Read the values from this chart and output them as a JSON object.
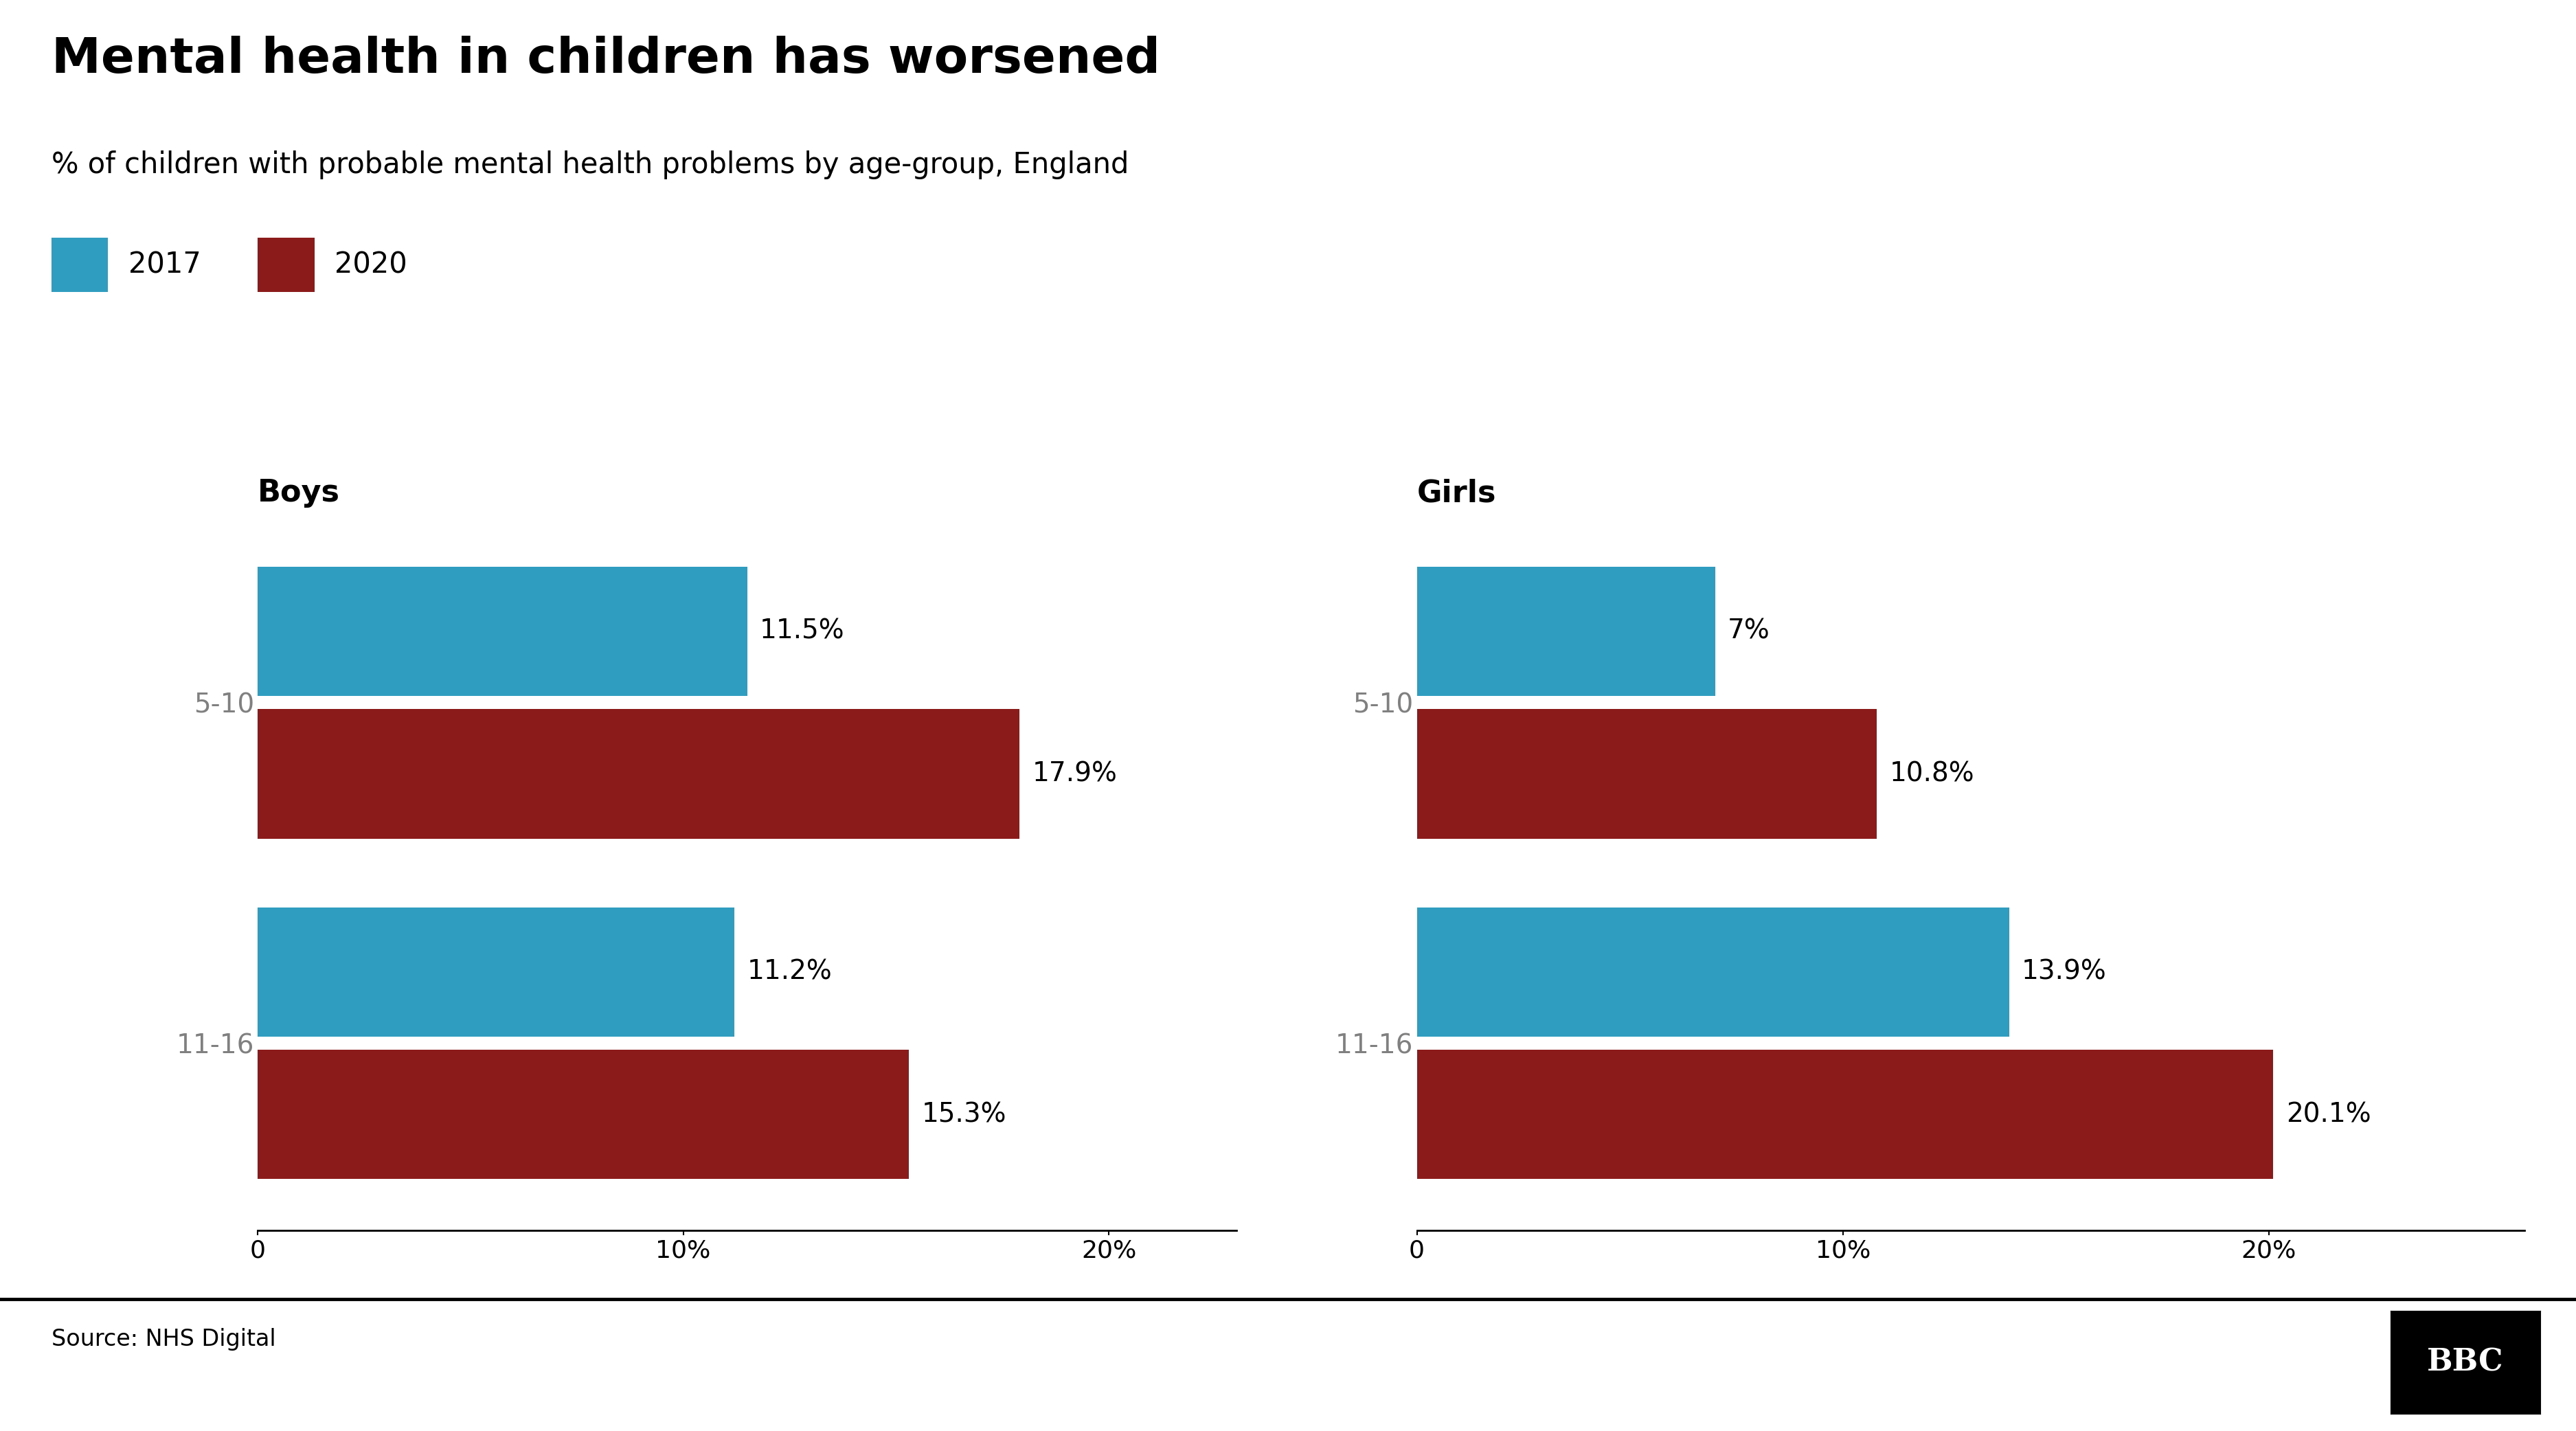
{
  "title": "Mental health in children has worsened",
  "subtitle": "% of children with probable mental health problems by age-group, England",
  "legend_labels": [
    "2017",
    "2020"
  ],
  "color_2017": "#2e9dbf",
  "color_2020": "#8b1a1a",
  "boys": {
    "title": "Boys",
    "categories": [
      "5-10",
      "11-16"
    ],
    "values_2017": [
      11.5,
      11.2
    ],
    "values_2020": [
      17.9,
      15.3
    ],
    "xlim": [
      0,
      23
    ],
    "xticks": [
      0,
      10,
      20
    ],
    "xticklabels": [
      "0",
      "10%",
      "20%"
    ]
  },
  "girls": {
    "title": "Girls",
    "categories": [
      "5-10",
      "11-16"
    ],
    "values_2017": [
      7.0,
      13.9
    ],
    "values_2020": [
      10.8,
      20.1
    ],
    "xlim": [
      0,
      26
    ],
    "xticks": [
      0,
      10,
      20
    ],
    "xticklabels": [
      "0",
      "10%",
      "20%"
    ]
  },
  "source_text": "Source: NHS Digital",
  "bbc_text": "BBC",
  "background_color": "#ffffff",
  "bar_height": 0.38,
  "title_fontsize": 52,
  "subtitle_fontsize": 30,
  "legend_fontsize": 30,
  "axis_title_fontsize": 32,
  "tick_fontsize": 26,
  "label_fontsize": 28,
  "category_fontsize": 28,
  "source_fontsize": 24
}
